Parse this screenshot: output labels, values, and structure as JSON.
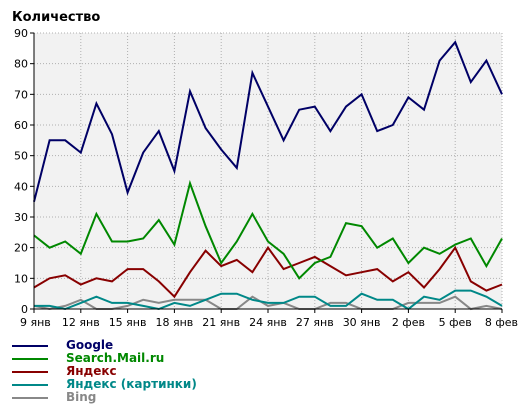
{
  "chart_data": {
    "type": "line",
    "title": "",
    "ylabel": "Количество",
    "xlabel": "",
    "ylim": [
      0,
      90
    ],
    "yticks": [
      0,
      10,
      20,
      30,
      40,
      50,
      60,
      70,
      80,
      90
    ],
    "grid": true,
    "legend_position": "bottom-left",
    "x": [
      "9 янв",
      "10 янв",
      "11 янв",
      "12 янв",
      "13 янв",
      "14 янв",
      "15 янв",
      "16 янв",
      "17 янв",
      "18 янв",
      "19 янв",
      "20 янв",
      "21 янв",
      "22 янв",
      "23 янв",
      "24 янв",
      "25 янв",
      "26 янв",
      "27 янв",
      "28 янв",
      "29 янв",
      "30 янв",
      "31 янв",
      "1 фев",
      "2 фев",
      "3 фев",
      "4 фев",
      "5 фев",
      "6 фев",
      "7 фев",
      "8 фев"
    ],
    "xtick_labels": [
      "9 янв",
      "12 янв",
      "15 янв",
      "18 янв",
      "21 янв",
      "24 янв",
      "27 янв",
      "30 янв",
      "2 фев",
      "5 фев",
      "8 фев"
    ],
    "series": [
      {
        "name": "Google",
        "color": "#000066",
        "values": [
          35,
          55,
          55,
          51,
          67,
          57,
          38,
          51,
          58,
          45,
          71,
          59,
          52,
          46,
          77,
          66,
          55,
          65,
          66,
          58,
          66,
          70,
          58,
          60,
          69,
          65,
          81,
          87,
          74,
          81,
          70
        ]
      },
      {
        "name": "Search.Mail.ru",
        "color": "#008800",
        "values": [
          24,
          20,
          22,
          18,
          31,
          22,
          22,
          23,
          29,
          21,
          41,
          27,
          15,
          22,
          31,
          22,
          18,
          10,
          15,
          17,
          28,
          27,
          20,
          23,
          15,
          20,
          18,
          21,
          23,
          14,
          23
        ]
      },
      {
        "name": "Яндекс",
        "color": "#880000",
        "values": [
          7,
          10,
          11,
          8,
          10,
          9,
          13,
          13,
          9,
          4,
          12,
          19,
          14,
          16,
          12,
          20,
          13,
          15,
          17,
          14,
          11,
          12,
          13,
          9,
          12,
          7,
          13,
          20,
          9,
          6,
          8
        ]
      },
      {
        "name": "Яндекс (картинки)",
        "color": "#008888",
        "values": [
          1,
          1,
          0,
          2,
          4,
          2,
          2,
          1,
          0,
          2,
          1,
          3,
          5,
          5,
          3,
          2,
          2,
          4,
          4,
          1,
          1,
          5,
          3,
          3,
          0,
          4,
          3,
          6,
          6,
          4,
          1
        ]
      },
      {
        "name": "Bing",
        "color": "#888888",
        "values": [
          1,
          0,
          1,
          3,
          0,
          0,
          1,
          3,
          2,
          3,
          3,
          3,
          0,
          0,
          4,
          1,
          2,
          0,
          0,
          2,
          2,
          0,
          0,
          0,
          2,
          2,
          2,
          4,
          0,
          1,
          0
        ]
      }
    ]
  }
}
